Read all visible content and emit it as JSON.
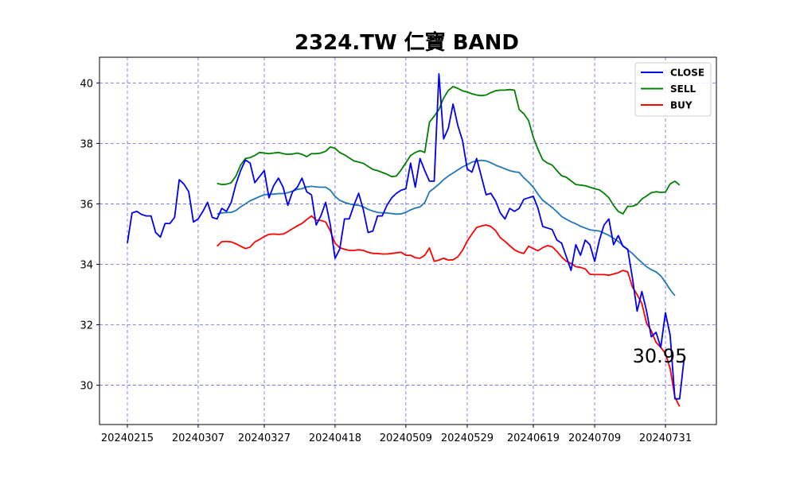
{
  "chart_data": {
    "type": "line",
    "title": "2324.TW 仁寶 BAND",
    "xlabel": "",
    "ylabel": "",
    "x_ticks": [
      "20240215",
      "20240307",
      "20240327",
      "20240418",
      "20240509",
      "20240529",
      "20240619",
      "20240709",
      "20240731"
    ],
    "y_ticks": [
      30,
      32,
      34,
      36,
      38,
      40
    ],
    "ylim": [
      28.7,
      40.85
    ],
    "grid": true,
    "legend_position": "top-right",
    "annotation": "30.95",
    "colors": {
      "CLOSE": "#0000ee",
      "SELL": "#008000",
      "BUY": "#ff0000",
      "MA": "#1f77b4",
      "grid": "#6666ee"
    },
    "series": [
      {
        "name": "CLOSE",
        "x_start": 0,
        "values": [
          34.7,
          35.7,
          35.75,
          35.65,
          35.6,
          35.6,
          35.05,
          34.9,
          35.35,
          35.35,
          35.55,
          36.8,
          36.65,
          36.4,
          35.4,
          35.5,
          35.75,
          36.05,
          35.55,
          35.5,
          35.85,
          35.75,
          36.05,
          36.65,
          37.1,
          37.45,
          37.35,
          36.7,
          36.9,
          37.1,
          36.2,
          36.6,
          36.85,
          36.55,
          35.95,
          36.4,
          36.55,
          36.85,
          36.4,
          36.3,
          35.3,
          35.6,
          36.05,
          35.3,
          34.2,
          34.5,
          35.5,
          35.5,
          35.95,
          36.35,
          35.8,
          35.05,
          35.1,
          35.6,
          35.6,
          35.95,
          36.2,
          36.35,
          36.45,
          36.5,
          37.35,
          36.55,
          37.5,
          37.1,
          36.75,
          36.75,
          40.3,
          38.15,
          38.5,
          39.3,
          38.6,
          38.1,
          37.15,
          37.05,
          37.5,
          36.9,
          36.3,
          36.35,
          36.1,
          35.7,
          35.5,
          35.85,
          35.75,
          35.85,
          36.15,
          36.2,
          36.25,
          35.85,
          35.25,
          35.2,
          35.15,
          34.8,
          34.7,
          34.25,
          33.8,
          34.65,
          34.3,
          34.8,
          34.65,
          34.1,
          34.8,
          35.3,
          35.5,
          34.65,
          34.95,
          34.6,
          34.5,
          33.55,
          32.45,
          33.1,
          32.45,
          31.6,
          31.75,
          31.25,
          32.4,
          31.65,
          29.55,
          29.55,
          30.95
        ]
      },
      {
        "name": "SELL",
        "x_start": 19,
        "values": [
          36.68,
          36.64,
          36.65,
          36.7,
          36.92,
          37.28,
          37.5,
          37.53,
          37.6,
          37.7,
          37.68,
          37.66,
          37.68,
          37.7,
          37.66,
          37.64,
          37.65,
          37.68,
          37.64,
          37.56,
          37.66,
          37.66,
          37.68,
          37.74,
          37.88,
          37.84,
          37.7,
          37.62,
          37.52,
          37.42,
          37.38,
          37.34,
          37.24,
          37.14,
          37.1,
          37.04,
          36.98,
          36.9,
          36.92,
          37.12,
          37.36,
          37.6,
          37.7,
          37.76,
          37.7,
          38.7,
          38.9,
          39.12,
          39.5,
          39.75,
          39.88,
          39.82,
          39.74,
          39.7,
          39.64,
          39.6,
          39.58,
          39.6,
          39.68,
          39.74,
          39.76,
          39.76,
          39.78,
          39.76,
          39.12,
          38.98,
          38.76,
          38.2,
          37.8,
          37.46,
          37.35,
          37.28,
          37.1,
          36.93,
          36.88,
          36.76,
          36.64,
          36.62,
          36.6,
          36.55,
          36.5,
          36.46,
          36.35,
          36.2,
          35.95,
          35.75,
          35.67,
          35.92,
          35.92,
          35.98,
          36.16,
          36.26,
          36.37,
          36.4,
          36.38,
          36.39,
          36.66,
          36.75,
          36.62
        ]
      },
      {
        "name": "BUY",
        "x_start": 19,
        "values": [
          34.6,
          34.75,
          34.76,
          34.74,
          34.68,
          34.6,
          34.52,
          34.57,
          34.74,
          34.82,
          34.92,
          34.99,
          35.0,
          34.99,
          35.0,
          35.08,
          35.18,
          35.27,
          35.35,
          35.48,
          35.6,
          35.46,
          35.45,
          35.4,
          35.1,
          34.7,
          34.55,
          34.5,
          34.46,
          34.46,
          34.48,
          34.46,
          34.4,
          34.36,
          34.36,
          34.34,
          34.34,
          34.36,
          34.38,
          34.4,
          34.3,
          34.3,
          34.22,
          34.2,
          34.3,
          34.54,
          34.1,
          34.14,
          34.2,
          34.14,
          34.15,
          34.25,
          34.46,
          34.77,
          35.0,
          35.22,
          35.27,
          35.3,
          35.25,
          35.12,
          34.88,
          34.76,
          34.62,
          34.48,
          34.4,
          34.36,
          34.6,
          34.52,
          34.45,
          34.55,
          34.62,
          34.58,
          34.43,
          34.24,
          34.1,
          34.03,
          33.92,
          33.9,
          33.85,
          33.67,
          33.66,
          33.66,
          33.66,
          33.64,
          33.68,
          33.72,
          33.8,
          33.75,
          33.25,
          33.0,
          32.7,
          32.05,
          31.8,
          31.42,
          31.25,
          31.05,
          30.55,
          29.6,
          29.3
        ]
      },
      {
        "name": "",
        "x_start": 19,
        "values": [
          35.66,
          35.7,
          35.71,
          35.72,
          35.78,
          35.9,
          36.0,
          36.1,
          36.17,
          36.24,
          36.3,
          36.32,
          36.32,
          36.34,
          36.34,
          36.37,
          36.42,
          36.48,
          36.5,
          36.56,
          36.58,
          36.56,
          36.55,
          36.55,
          36.45,
          36.25,
          36.12,
          36.05,
          36.0,
          35.97,
          35.95,
          35.9,
          35.82,
          35.76,
          35.72,
          35.7,
          35.7,
          35.68,
          35.66,
          35.67,
          35.72,
          35.8,
          35.86,
          35.9,
          36.04,
          36.4,
          36.52,
          36.65,
          36.8,
          36.92,
          37.02,
          37.12,
          37.22,
          37.3,
          37.38,
          37.42,
          37.44,
          37.42,
          37.36,
          37.28,
          37.22,
          37.16,
          37.1,
          37.06,
          37.04,
          36.86,
          36.72,
          36.55,
          36.32,
          36.12,
          36.0,
          35.88,
          35.74,
          35.58,
          35.49,
          35.41,
          35.34,
          35.26,
          35.2,
          35.14,
          35.12,
          35.1,
          35.03,
          34.96,
          34.86,
          34.76,
          34.62,
          34.48,
          34.36,
          34.2,
          34.06,
          33.92,
          33.82,
          33.75,
          33.62,
          33.4,
          33.16,
          32.96
        ]
      }
    ]
  }
}
